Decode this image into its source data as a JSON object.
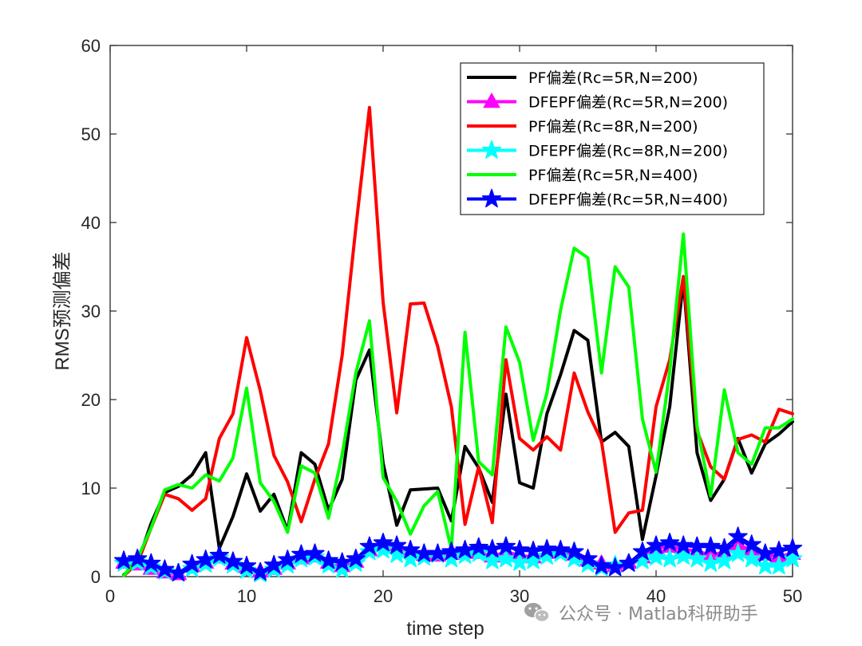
{
  "chart_data": {
    "type": "line",
    "xlabel": "time step",
    "ylabel": "RMS预测偏差",
    "xlim": [
      0,
      50
    ],
    "ylim": [
      0,
      60
    ],
    "xticks": [
      0,
      10,
      20,
      30,
      40,
      50
    ],
    "yticks": [
      0,
      10,
      20,
      30,
      40,
      50,
      60
    ],
    "grid": false,
    "legend_position": "top-right",
    "x": [
      1,
      2,
      3,
      4,
      5,
      6,
      7,
      8,
      9,
      10,
      11,
      12,
      13,
      14,
      15,
      16,
      17,
      18,
      19,
      20,
      21,
      22,
      23,
      24,
      25,
      26,
      27,
      28,
      29,
      30,
      31,
      32,
      33,
      34,
      35,
      36,
      37,
      38,
      39,
      40,
      41,
      42,
      43,
      44,
      45,
      46,
      47,
      48,
      49,
      50
    ],
    "series": [
      {
        "name": "PF偏差(Rc=5R,N=200)",
        "color": "#000000",
        "marker": "none",
        "values": [
          0.2,
          1.5,
          6.0,
          9.5,
          10.2,
          11.5,
          14.0,
          3.2,
          6.8,
          11.6,
          7.4,
          9.3,
          5.2,
          14.0,
          12.7,
          7.5,
          11.0,
          22.2,
          25.6,
          12.8,
          5.8,
          9.8,
          9.9,
          10.0,
          6.3,
          14.7,
          12.3,
          8.4,
          20.6,
          10.6,
          10.0,
          18.4,
          22.8,
          27.8,
          26.7,
          15.2,
          16.3,
          14.7,
          4.2,
          11.4,
          19.2,
          33.5,
          14.0,
          8.6,
          11.0,
          15.6,
          11.7,
          15.0,
          16.1,
          17.5
        ]
      },
      {
        "name": "DFEPF偏差(Rc=5R,N=200)",
        "color": "#ff00ff",
        "marker": "triangle",
        "values": [
          1.6,
          1.4,
          0.9,
          0.5,
          0.3,
          1.2,
          1.6,
          2.2,
          1.5,
          1.1,
          0.6,
          0.9,
          1.5,
          2.1,
          2.3,
          1.6,
          1.2,
          1.7,
          3.0,
          3.5,
          3.3,
          2.9,
          2.5,
          2.4,
          2.6,
          2.8,
          2.7,
          2.3,
          2.8,
          2.4,
          2.2,
          2.7,
          2.9,
          2.5,
          1.9,
          1.5,
          1.2,
          1.6,
          2.2,
          3.2,
          3.4,
          3.1,
          2.9,
          2.4,
          2.8,
          3.6,
          3.0,
          2.5,
          2.3,
          2.6
        ]
      },
      {
        "name": "PF偏差(Rc=8R,N=200)",
        "color": "#ff0000",
        "marker": "none",
        "values": [
          0.1,
          1.5,
          5.5,
          9.3,
          8.8,
          7.5,
          8.8,
          15.6,
          18.4,
          27.0,
          21.0,
          13.7,
          10.7,
          6.2,
          11.0,
          15.0,
          25.0,
          39.4,
          53.0,
          31.0,
          18.5,
          30.8,
          30.9,
          26.0,
          19.2,
          5.9,
          12.4,
          6.1,
          24.5,
          15.6,
          14.3,
          15.8,
          14.3,
          23.0,
          18.6,
          15.3,
          5.0,
          7.2,
          7.5,
          19.2,
          24.5,
          33.9,
          16.5,
          12.4,
          11.0,
          15.5,
          16.0,
          15.2,
          18.9,
          18.4
        ]
      },
      {
        "name": "DFEPF偏差(Rc=8R,N=200)",
        "color": "#00ffff",
        "marker": "star",
        "values": [
          1.5,
          1.6,
          1.1,
          0.6,
          0.4,
          0.9,
          1.4,
          2.1,
          1.3,
          0.7,
          0.3,
          0.8,
          1.3,
          2.0,
          2.2,
          1.3,
          0.8,
          1.5,
          2.8,
          3.0,
          2.5,
          2.0,
          2.2,
          2.5,
          2.0,
          2.4,
          2.6,
          1.8,
          2.0,
          1.6,
          1.8,
          2.3,
          2.6,
          2.0,
          1.4,
          1.0,
          1.3,
          1.5,
          1.8,
          2.2,
          2.0,
          2.3,
          2.0,
          1.5,
          1.8,
          2.6,
          2.0,
          1.2,
          1.2,
          2.0
        ]
      },
      {
        "name": "PF偏差(Rc=5R,N=400)",
        "color": "#00ff00",
        "marker": "none",
        "values": [
          0.1,
          2.0,
          5.5,
          9.8,
          10.4,
          10.0,
          11.5,
          10.8,
          13.4,
          21.3,
          10.6,
          8.5,
          5.0,
          12.5,
          11.7,
          6.6,
          13.8,
          23.0,
          28.9,
          11.2,
          8.5,
          4.8,
          8.0,
          9.6,
          3.1,
          27.6,
          13.0,
          11.5,
          28.2,
          24.2,
          15.4,
          20.7,
          30.1,
          37.1,
          36.0,
          23.0,
          35.0,
          32.7,
          17.8,
          11.8,
          23.2,
          38.7,
          17.0,
          9.1,
          21.1,
          14.0,
          12.7,
          16.8,
          16.8,
          17.8
        ]
      },
      {
        "name": "DFEPF偏差(Rc=5R,N=400)",
        "color": "#0000ff",
        "marker": "star",
        "values": [
          1.8,
          2.0,
          1.5,
          0.8,
          0.4,
          1.4,
          1.9,
          2.4,
          1.7,
          1.2,
          0.5,
          1.3,
          1.9,
          2.5,
          2.6,
          1.8,
          1.6,
          2.0,
          3.4,
          3.8,
          3.5,
          3.0,
          2.6,
          2.6,
          2.8,
          3.0,
          3.3,
          3.1,
          3.4,
          3.0,
          2.9,
          3.1,
          3.0,
          2.8,
          2.0,
          1.2,
          1.0,
          1.5,
          2.8,
          3.5,
          3.8,
          3.5,
          3.4,
          3.4,
          3.2,
          4.5,
          3.6,
          2.6,
          2.9,
          3.2
        ]
      }
    ]
  },
  "watermark": "公众号 · Matlab科研助手"
}
